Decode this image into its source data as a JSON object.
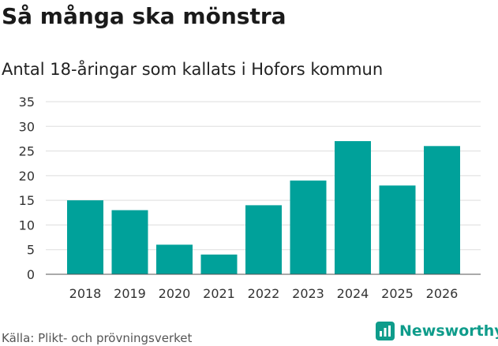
{
  "header": {
    "title": "Så många ska mönstra",
    "subtitle": "Antal 18-åringar som kallats i Hofors kommun"
  },
  "footer": {
    "source": "Källa: Plikt- och prövningsverket",
    "brand": "Newsworthy"
  },
  "colors": {
    "bar": "#00a19a",
    "grid": "#dddddd",
    "brand": "#0f9c8b"
  },
  "chart_data": {
    "type": "bar",
    "title": "Så många ska mönstra",
    "subtitle": "Antal 18-åringar som kallats i Hofors kommun",
    "xlabel": "",
    "ylabel": "",
    "categories": [
      "2018",
      "2019",
      "2020",
      "2021",
      "2022",
      "2023",
      "2024",
      "2025",
      "2026"
    ],
    "values": [
      15,
      13,
      6,
      4,
      14,
      19,
      27,
      18,
      26
    ],
    "ylim": [
      0,
      35
    ],
    "yticks": [
      0,
      5,
      10,
      15,
      20,
      25,
      30,
      35
    ],
    "grid": true
  }
}
